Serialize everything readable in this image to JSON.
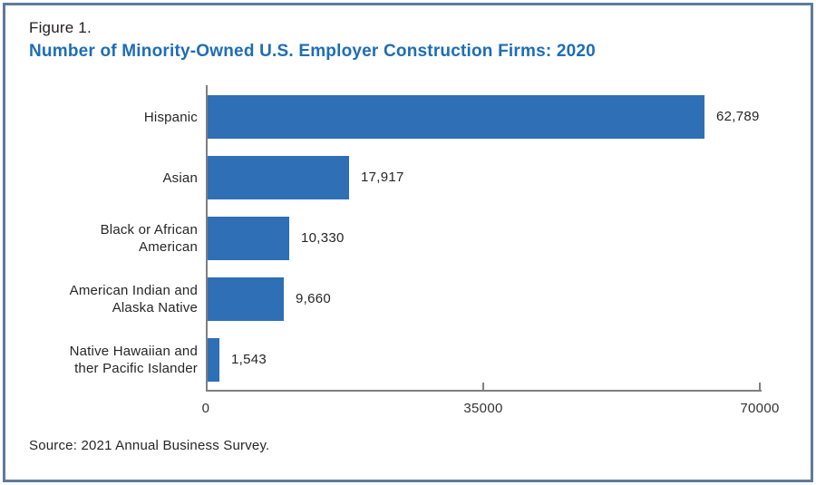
{
  "figure": {
    "label": "Figure 1.",
    "title": "Number of Minority-Owned U.S. Employer Construction Firms: 2020",
    "source": "Source: 2021 Annual Business Survey."
  },
  "colors": {
    "bar": "#2f6fb5",
    "title": "#1e6db6",
    "border": "#5e7b9d",
    "axis": "#7f7f7f"
  },
  "chart_data": {
    "type": "bar",
    "orientation": "horizontal",
    "title": "Number of Minority-Owned U.S. Employer Construction Firms: 2020",
    "categories": [
      "Hispanic",
      "Asian",
      "Black or African American",
      "American Indian and Alaska Native",
      "Native Hawaiian and ther Pacific Islander"
    ],
    "category_display_lines": [
      [
        "Hispanic"
      ],
      [
        "Asian"
      ],
      [
        "Black or African",
        "American"
      ],
      [
        "American Indian and",
        "Alaska Native"
      ],
      [
        "Native Hawaiian and",
        "ther Pacific Islander"
      ]
    ],
    "values": [
      62789,
      17917,
      10330,
      9660,
      1543
    ],
    "value_labels": [
      "62,789",
      "17,917",
      "10,330",
      "9,660",
      "1,543"
    ],
    "xlabel": "",
    "ylabel": "",
    "xlim": [
      0,
      70000
    ],
    "x_ticks": [
      0,
      35000,
      70000
    ],
    "x_tick_labels": [
      "0",
      "35000",
      "70000"
    ],
    "grid": false,
    "legend": false
  }
}
